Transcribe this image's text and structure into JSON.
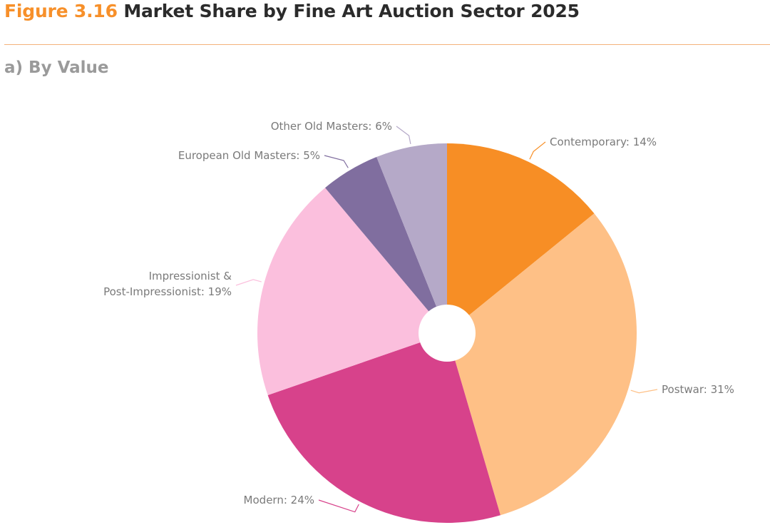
{
  "header": {
    "figure_number": "Figure 3.16",
    "figure_title": "Market Share by Fine Art Auction Sector 2025"
  },
  "panel": {
    "subtitle": "a) By Value"
  },
  "chart_data": {
    "type": "pie",
    "title": "Market Share by Fine Art Auction Sector 2025",
    "subtitle": "a) By Value",
    "unit": "%",
    "legend": "none",
    "grid": false,
    "categories": [
      "Contemporary",
      "Postwar",
      "Modern",
      "Impressionist & Post-Impressionist",
      "European Old Masters",
      "Other Old Masters"
    ],
    "values": [
      14,
      31,
      24,
      19,
      5,
      6
    ],
    "colors": [
      "#f78e25",
      "#fec086",
      "#d7428b",
      "#fbbfdd",
      "#806e9f",
      "#b5a9c8"
    ],
    "labels": [
      [
        "Contemporary: 14%"
      ],
      [
        "Postwar: 31%"
      ],
      [
        "Modern: 24%"
      ],
      [
        "Impressionist &",
        "Post-Impressionist: 19%"
      ],
      [
        "European Old Masters: 5%"
      ],
      [
        "Other Old Masters: 6%"
      ]
    ]
  }
}
